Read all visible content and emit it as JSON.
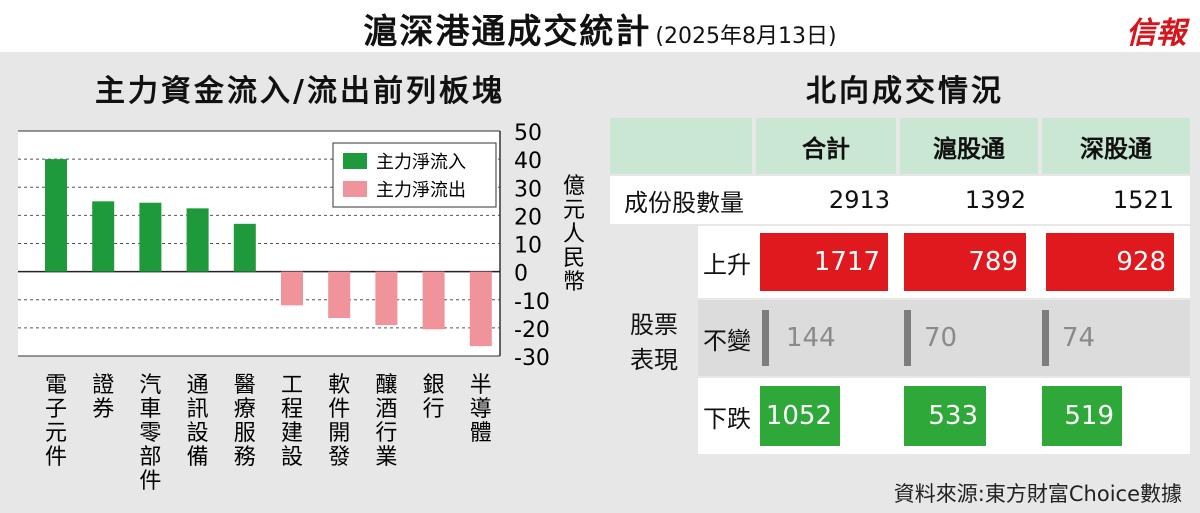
{
  "title": "滬深港通成交統計",
  "date": "(2025年8月13日)",
  "brand": "信報",
  "left_subtitle": "主力資金流入/流出前列板塊",
  "right_subtitle": "北向成交情況",
  "source": "資料來源:東方財富Choice數據",
  "colors": {
    "inflow": "#1e9a3c",
    "outflow": "#f0939b",
    "rise": "#e0191e",
    "fall": "#2fa83a",
    "flat": "#7d7d7d",
    "header": "#c9e7d2"
  },
  "chart_data": {
    "type": "bar",
    "categories": [
      "電子元件",
      "證券",
      "汽車零部件",
      "通訊設備",
      "醫療服務",
      "工程建設",
      "軟件開發",
      "釀酒行業",
      "銀行",
      "半導體"
    ],
    "series": [
      {
        "name": "主力淨流入",
        "values": [
          40,
          25,
          24.5,
          22.5,
          17,
          null,
          null,
          null,
          null,
          null
        ]
      },
      {
        "name": "主力淨流出",
        "values": [
          null,
          null,
          null,
          null,
          null,
          -12,
          -16.5,
          -19,
          -20.5,
          -26.5
        ]
      }
    ],
    "ylabel": "億元人民幣",
    "ylim": [
      -30,
      50
    ],
    "yticks": [
      50,
      40,
      30,
      20,
      10,
      0,
      -10,
      -20,
      -30
    ],
    "legend": "top-right",
    "grid": true
  },
  "table": {
    "headers": [
      "合計",
      "滬股通",
      "深股通"
    ],
    "count_label": "成份股數量",
    "counts": [
      "2913",
      "1392",
      "1521"
    ],
    "group_label_1": "股票",
    "group_label_2": "表現",
    "rows": [
      {
        "label": "上升",
        "values": [
          1717,
          789,
          928
        ]
      },
      {
        "label": "不變",
        "values": [
          144,
          70,
          74
        ]
      },
      {
        "label": "下跌",
        "values": [
          1052,
          533,
          519
        ]
      }
    ]
  }
}
